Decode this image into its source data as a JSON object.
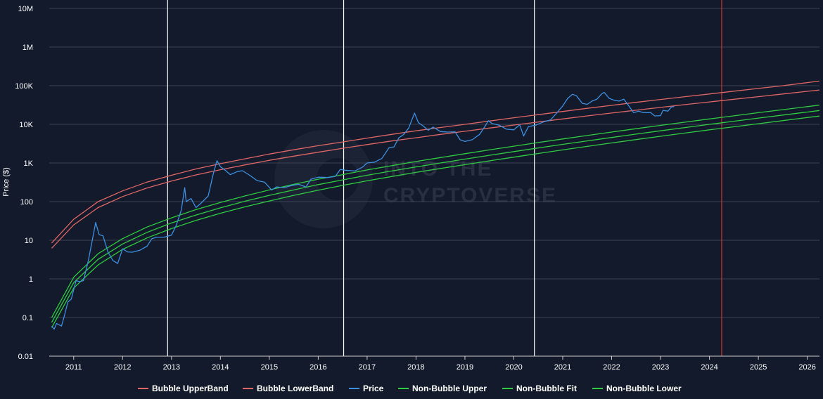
{
  "chart_data": {
    "type": "line",
    "title": "",
    "xlabel": "",
    "ylabel": "Price ($)",
    "yscale": "log",
    "ylim": [
      0.01,
      10000000
    ],
    "xlim": [
      2010.5,
      2026.25
    ],
    "grid": {
      "horizontal": true,
      "vertical": false
    },
    "legend_position": "bottom",
    "watermark": [
      "INTO THE",
      "CRYPTOVERSE"
    ],
    "x_ticks": [
      {
        "v": 2011,
        "label": "2011"
      },
      {
        "v": 2012,
        "label": "2012"
      },
      {
        "v": 2013,
        "label": "2013"
      },
      {
        "v": 2014,
        "label": "2014"
      },
      {
        "v": 2015,
        "label": "2015"
      },
      {
        "v": 2016,
        "label": "2016"
      },
      {
        "v": 2017,
        "label": "2017"
      },
      {
        "v": 2018,
        "label": "2018"
      },
      {
        "v": 2019,
        "label": "2019"
      },
      {
        "v": 2020,
        "label": "2020"
      },
      {
        "v": 2021,
        "label": "2021"
      },
      {
        "v": 2022,
        "label": "2022"
      },
      {
        "v": 2023,
        "label": "2023"
      },
      {
        "v": 2024,
        "label": "2024"
      },
      {
        "v": 2025,
        "label": "2025"
      },
      {
        "v": 2026,
        "label": "2026"
      }
    ],
    "y_ticks": [
      {
        "v": 0.01,
        "label": "0.01"
      },
      {
        "v": 0.1,
        "label": "0.1"
      },
      {
        "v": 1,
        "label": "1"
      },
      {
        "v": 10,
        "label": "10"
      },
      {
        "v": 100,
        "label": "100"
      },
      {
        "v": 1000,
        "label": "1K"
      },
      {
        "v": 10000,
        "label": "10K"
      },
      {
        "v": 100000,
        "label": "100K"
      },
      {
        "v": 1000000,
        "label": "1M"
      },
      {
        "v": 10000000,
        "label": "10M"
      }
    ],
    "vertical_markers": [
      {
        "x": 2012.92,
        "color": "#ffffff"
      },
      {
        "x": 2016.52,
        "color": "#ffffff"
      },
      {
        "x": 2020.42,
        "color": "#ffffff"
      },
      {
        "x": 2024.25,
        "color": "#c0392b"
      }
    ],
    "x": [
      2010.55,
      2011.0,
      2011.5,
      2012.0,
      2012.5,
      2013.0,
      2013.5,
      2014.0,
      2014.5,
      2015.0,
      2015.5,
      2016.0,
      2016.5,
      2017.0,
      2017.5,
      2018.0,
      2018.5,
      2019.0,
      2019.5,
      2020.0,
      2020.5,
      2021.0,
      2021.5,
      2022.0,
      2022.5,
      2023.0,
      2023.5,
      2024.0,
      2024.5,
      2025.0,
      2025.5,
      2026.0,
      2026.25
    ],
    "series": [
      {
        "name": "Bubble UpperBand",
        "color": "#e06666",
        "values": [
          8.5,
          35,
          100,
          190,
          320,
          480,
          700,
          960,
          1280,
          1700,
          2200,
          2800,
          3500,
          4400,
          5500,
          6800,
          8300,
          10000,
          12200,
          14800,
          17800,
          21500,
          26000,
          31000,
          37000,
          44000,
          52000,
          61000,
          72000,
          85000,
          100000,
          120000,
          132000
        ]
      },
      {
        "name": "Bubble LowerBand",
        "color": "#e06666",
        "values": [
          6.2,
          25,
          70,
          135,
          225,
          340,
          490,
          670,
          890,
          1170,
          1500,
          1900,
          2400,
          3000,
          3700,
          4500,
          5500,
          6600,
          8000,
          9600,
          11500,
          13800,
          16500,
          19600,
          23200,
          27400,
          32400,
          38000,
          44500,
          52000,
          61000,
          71500,
          77500
        ]
      },
      {
        "name": "Non-Bubble Upper",
        "color": "#2ecc40",
        "values": [
          0.1,
          1.1,
          4.5,
          11,
          22,
          38,
          62,
          95,
          140,
          200,
          280,
          380,
          500,
          660,
          850,
          1090,
          1380,
          1740,
          2180,
          2720,
          3380,
          4180,
          5150,
          6320,
          7720,
          9400,
          11400,
          13800,
          16600,
          20000,
          24000,
          28700,
          31500
        ]
      },
      {
        "name": "Non-Bubble Fit",
        "color": "#2ecc40",
        "values": [
          0.075,
          0.8,
          3.2,
          8,
          16,
          28,
          45,
          69,
          102,
          145,
          200,
          275,
          365,
          480,
          620,
          790,
          1000,
          1260,
          1580,
          1970,
          2450,
          3030,
          3730,
          4580,
          5590,
          6810,
          8260,
          10000,
          12000,
          14500,
          17400,
          20800,
          22800
        ]
      },
      {
        "name": "Non-Bubble Lower",
        "color": "#2ecc40",
        "values": [
          0.055,
          0.58,
          2.3,
          5.8,
          11.5,
          20,
          32.5,
          50,
          73,
          104,
          145,
          198,
          263,
          345,
          446,
          570,
          720,
          905,
          1135,
          1415,
          1760,
          2180,
          2690,
          3300,
          4030,
          4900,
          5950,
          7200,
          8650,
          10400,
          12500,
          15000,
          16400
        ]
      }
    ],
    "price_series": {
      "name": "Price",
      "color": "#3d8fe0",
      "points": [
        [
          2010.55,
          0.06
        ],
        [
          2010.6,
          0.05
        ],
        [
          2010.65,
          0.07
        ],
        [
          2010.75,
          0.06
        ],
        [
          2010.8,
          0.1
        ],
        [
          2010.88,
          0.25
        ],
        [
          2010.95,
          0.3
        ],
        [
          2011.05,
          0.9
        ],
        [
          2011.12,
          0.85
        ],
        [
          2011.2,
          0.9
        ],
        [
          2011.3,
          3
        ],
        [
          2011.38,
          10
        ],
        [
          2011.45,
          29
        ],
        [
          2011.52,
          14
        ],
        [
          2011.6,
          13
        ],
        [
          2011.7,
          5
        ],
        [
          2011.8,
          3
        ],
        [
          2011.9,
          2.5
        ],
        [
          2012.0,
          6
        ],
        [
          2012.1,
          5
        ],
        [
          2012.2,
          4.9
        ],
        [
          2012.35,
          5.5
        ],
        [
          2012.5,
          7
        ],
        [
          2012.6,
          11
        ],
        [
          2012.7,
          12
        ],
        [
          2012.85,
          12
        ],
        [
          2013.0,
          13.5
        ],
        [
          2013.1,
          25
        ],
        [
          2013.2,
          60
        ],
        [
          2013.27,
          230
        ],
        [
          2013.3,
          100
        ],
        [
          2013.4,
          120
        ],
        [
          2013.5,
          70
        ],
        [
          2013.6,
          90
        ],
        [
          2013.75,
          140
        ],
        [
          2013.85,
          500
        ],
        [
          2013.93,
          1150
        ],
        [
          2014.0,
          800
        ],
        [
          2014.1,
          650
        ],
        [
          2014.2,
          500
        ],
        [
          2014.35,
          600
        ],
        [
          2014.45,
          630
        ],
        [
          2014.6,
          480
        ],
        [
          2014.75,
          350
        ],
        [
          2014.9,
          320
        ],
        [
          2015.05,
          200
        ],
        [
          2015.15,
          240
        ],
        [
          2015.3,
          230
        ],
        [
          2015.45,
          260
        ],
        [
          2015.6,
          280
        ],
        [
          2015.75,
          240
        ],
        [
          2015.85,
          380
        ],
        [
          2016.0,
          430
        ],
        [
          2016.2,
          420
        ],
        [
          2016.35,
          450
        ],
        [
          2016.45,
          680
        ],
        [
          2016.55,
          650
        ],
        [
          2016.75,
          620
        ],
        [
          2016.9,
          770
        ],
        [
          2017.0,
          1000
        ],
        [
          2017.15,
          1050
        ],
        [
          2017.3,
          1300
        ],
        [
          2017.45,
          2500
        ],
        [
          2017.55,
          2600
        ],
        [
          2017.65,
          4500
        ],
        [
          2017.75,
          5500
        ],
        [
          2017.85,
          8000
        ],
        [
          2017.97,
          19500
        ],
        [
          2018.05,
          11000
        ],
        [
          2018.15,
          9000
        ],
        [
          2018.25,
          7000
        ],
        [
          2018.35,
          8500
        ],
        [
          2018.5,
          6500
        ],
        [
          2018.65,
          6300
        ],
        [
          2018.8,
          6400
        ],
        [
          2018.9,
          4000
        ],
        [
          2019.0,
          3600
        ],
        [
          2019.15,
          4000
        ],
        [
          2019.3,
          5500
        ],
        [
          2019.4,
          8500
        ],
        [
          2019.48,
          12500
        ],
        [
          2019.55,
          10500
        ],
        [
          2019.7,
          9500
        ],
        [
          2019.85,
          7500
        ],
        [
          2020.0,
          7200
        ],
        [
          2020.12,
          9800
        ],
        [
          2020.2,
          5000
        ],
        [
          2020.3,
          8800
        ],
        [
          2020.45,
          9500
        ],
        [
          2020.6,
          11500
        ],
        [
          2020.75,
          13000
        ],
        [
          2020.85,
          18000
        ],
        [
          2021.0,
          30000
        ],
        [
          2021.1,
          47000
        ],
        [
          2021.2,
          60000
        ],
        [
          2021.28,
          55000
        ],
        [
          2021.4,
          35000
        ],
        [
          2021.5,
          33000
        ],
        [
          2021.6,
          40000
        ],
        [
          2021.7,
          45000
        ],
        [
          2021.8,
          62000
        ],
        [
          2021.85,
          67000
        ],
        [
          2021.95,
          47000
        ],
        [
          2022.05,
          42000
        ],
        [
          2022.15,
          40000
        ],
        [
          2022.25,
          45000
        ],
        [
          2022.35,
          30000
        ],
        [
          2022.45,
          20000
        ],
        [
          2022.55,
          22000
        ],
        [
          2022.65,
          20000
        ],
        [
          2022.8,
          20000
        ],
        [
          2022.88,
          16500
        ],
        [
          2023.0,
          16800
        ],
        [
          2023.05,
          23000
        ],
        [
          2023.15,
          22000
        ],
        [
          2023.22,
          28000
        ],
        [
          2023.28,
          29000
        ]
      ]
    },
    "legend": [
      {
        "label": "Bubble UpperBand",
        "color": "#e06666"
      },
      {
        "label": "Bubble LowerBand",
        "color": "#e06666"
      },
      {
        "label": "Price",
        "color": "#3d8fe0"
      },
      {
        "label": "Non-Bubble Upper",
        "color": "#2ecc40"
      },
      {
        "label": "Non-Bubble Fit",
        "color": "#2ecc40"
      },
      {
        "label": "Non-Bubble Lower",
        "color": "#2ecc40"
      }
    ]
  }
}
